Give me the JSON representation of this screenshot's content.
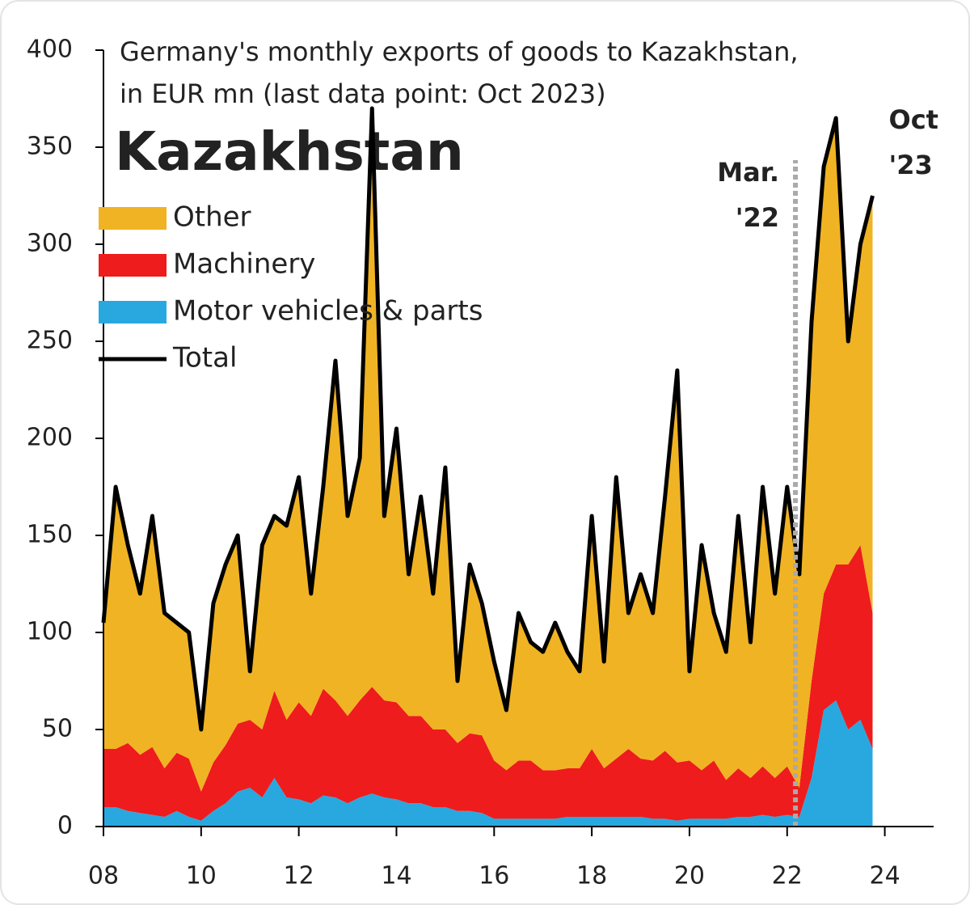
{
  "chart_data": {
    "type": "stacked_area",
    "title_lines": [
      "Germany's monthly exports of goods to Kazakhstan,",
      "in EUR mn (last data point: Oct 2023)"
    ],
    "subtitle": "Kazakhstan",
    "x": [
      2008,
      2008.25,
      2008.5,
      2008.75,
      2009,
      2009.25,
      2009.5,
      2009.75,
      2010,
      2010.25,
      2010.5,
      2010.75,
      2011,
      2011.25,
      2011.5,
      2011.75,
      2012,
      2012.25,
      2012.5,
      2012.75,
      2013,
      2013.25,
      2013.5,
      2013.75,
      2014,
      2014.25,
      2014.5,
      2014.75,
      2015,
      2015.25,
      2015.5,
      2015.75,
      2016,
      2016.25,
      2016.5,
      2016.75,
      2017,
      2017.25,
      2017.5,
      2017.75,
      2018,
      2018.25,
      2018.5,
      2018.75,
      2019,
      2019.25,
      2019.5,
      2019.75,
      2020,
      2020.25,
      2020.5,
      2020.75,
      2021,
      2021.25,
      2021.5,
      2021.75,
      2022,
      2022.25,
      2022.5,
      2022.75,
      2023,
      2023.25,
      2023.5,
      2023.75
    ],
    "series": [
      {
        "name": "Motor vehicles & parts",
        "color": "#29a8e0",
        "values": [
          10,
          10,
          8,
          7,
          6,
          5,
          8,
          5,
          3,
          8,
          12,
          18,
          20,
          15,
          25,
          15,
          14,
          12,
          16,
          15,
          12,
          15,
          17,
          15,
          14,
          12,
          12,
          10,
          10,
          8,
          8,
          7,
          4,
          4,
          4,
          4,
          4,
          4,
          5,
          5,
          5,
          5,
          5,
          5,
          5,
          4,
          4,
          3,
          4,
          4,
          4,
          4,
          5,
          5,
          6,
          5,
          6,
          5,
          25,
          60,
          65,
          50,
          55,
          40
        ]
      },
      {
        "name": "Machinery",
        "color": "#ee1c1c",
        "values": [
          30,
          30,
          35,
          30,
          35,
          25,
          30,
          30,
          15,
          25,
          30,
          35,
          35,
          35,
          45,
          40,
          50,
          45,
          55,
          50,
          45,
          50,
          55,
          50,
          50,
          45,
          45,
          40,
          40,
          35,
          40,
          40,
          30,
          25,
          30,
          30,
          25,
          25,
          25,
          25,
          35,
          25,
          30,
          35,
          30,
          30,
          35,
          30,
          30,
          25,
          30,
          20,
          25,
          20,
          25,
          20,
          25,
          15,
          50,
          60,
          70,
          85,
          90,
          70
        ]
      },
      {
        "name": "Other",
        "color": "#f0b323",
        "values": [
          65,
          135,
          102,
          83,
          119,
          80,
          67,
          65,
          32,
          82,
          93,
          97,
          25,
          95,
          90,
          100,
          116,
          63,
          104,
          175,
          103,
          125,
          298,
          95,
          141,
          73,
          113,
          70,
          135,
          32,
          87,
          68,
          51,
          31,
          76,
          61,
          61,
          76,
          60,
          50,
          120,
          55,
          145,
          70,
          95,
          76,
          131,
          202,
          46,
          116,
          76,
          66,
          130,
          70,
          144,
          95,
          144,
          110,
          185,
          220,
          230,
          115,
          155,
          215
        ]
      }
    ],
    "total": {
      "name": "Total",
      "color": "#000000",
      "values": [
        105,
        175,
        145,
        120,
        160,
        110,
        105,
        100,
        50,
        115,
        135,
        150,
        80,
        145,
        160,
        155,
        180,
        120,
        175,
        240,
        160,
        190,
        370,
        160,
        205,
        130,
        170,
        120,
        185,
        75,
        135,
        115,
        85,
        60,
        110,
        95,
        90,
        105,
        90,
        80,
        160,
        85,
        180,
        110,
        130,
        110,
        170,
        235,
        80,
        145,
        110,
        90,
        160,
        95,
        175,
        120,
        175,
        130,
        260,
        340,
        365,
        250,
        300,
        325
      ]
    },
    "legend_order": [
      2,
      1,
      0
    ],
    "xlim": [
      2008,
      2025
    ],
    "xticks": [
      {
        "value": 2008,
        "label": "08"
      },
      {
        "value": 2010,
        "label": "10"
      },
      {
        "value": 2012,
        "label": "12"
      },
      {
        "value": 2014,
        "label": "14"
      },
      {
        "value": 2016,
        "label": "16"
      },
      {
        "value": 2018,
        "label": "18"
      },
      {
        "value": 2020,
        "label": "20"
      },
      {
        "value": 2022,
        "label": "22"
      },
      {
        "value": 2024,
        "label": "24"
      }
    ],
    "ylim": [
      0,
      400
    ],
    "yticks": [
      0,
      50,
      100,
      150,
      200,
      250,
      300,
      350,
      400
    ],
    "annotations": [
      {
        "x": 2022.17,
        "lines": [
          "Mar.",
          "'22"
        ],
        "color": "#aaaaaa"
      },
      {
        "x": 2023.75,
        "lines": [
          "Oct",
          "'23"
        ],
        "color": "#000000"
      }
    ]
  }
}
